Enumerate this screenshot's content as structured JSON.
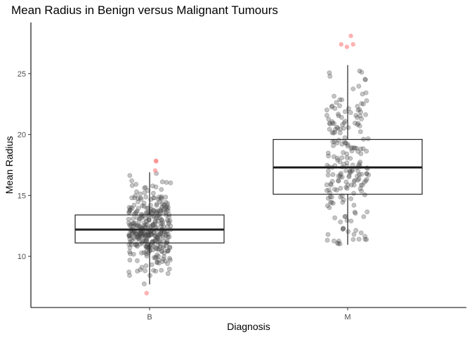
{
  "chart_data": {
    "type": "boxplot",
    "title": "Mean Radius in Benign versus Malignant Tumours",
    "xlabel": "Diagnosis",
    "ylabel": "Mean Radius",
    "categories": [
      "B",
      "M"
    ],
    "ylim": [
      5.8,
      29.2
    ],
    "yticks": [
      10,
      15,
      20,
      25
    ],
    "grid": false,
    "legend": "none",
    "point_color": "#555555",
    "outlier_color": "#ff7f7f",
    "boxes": [
      {
        "category": "B",
        "q1": 11.1,
        "median": 12.2,
        "q3": 13.4,
        "whisker_low": 7.7,
        "whisker_high": 16.9,
        "n": 357,
        "outliers": [
          6.98,
          17.8,
          17.85,
          17.05
        ]
      },
      {
        "category": "M",
        "q1": 15.1,
        "median": 17.3,
        "q3": 19.6,
        "whisker_low": 10.95,
        "whisker_high": 25.7,
        "n": 212,
        "outliers": [
          28.1,
          27.4,
          27.2,
          27.4
        ]
      }
    ]
  }
}
